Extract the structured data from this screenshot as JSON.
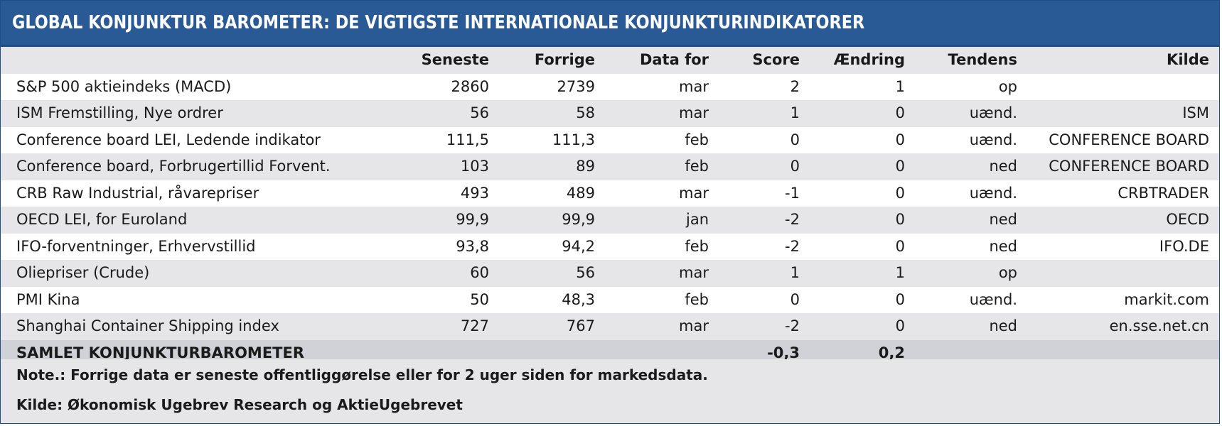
{
  "title": "GLOBAL KONJUNKTUR BAROMETER: DE VIGTIGSTE INTERNATIONALE KONJUNKTURINDIKATORER",
  "colors": {
    "title_bg": "#2a5a96",
    "border": "#1f4d86",
    "row_shade": "#e6e6e9",
    "total_bg": "#d0d2d7"
  },
  "table": {
    "headers": {
      "seneste": "Seneste",
      "forrige": "Forrige",
      "data_for": "Data for",
      "score": "Score",
      "aendring": "Ændring",
      "tendens": "Tendens",
      "kilde": "Kilde"
    },
    "rows": [
      {
        "name": "S&P 500 aktieindeks (MACD)",
        "seneste": "2860",
        "forrige": "2739",
        "data_for": "mar",
        "score": "2",
        "aendring": "1",
        "tendens": "op",
        "kilde": ""
      },
      {
        "name": "ISM Fremstilling, Nye ordrer",
        "seneste": "56",
        "forrige": "58",
        "data_for": "mar",
        "score": "1",
        "aendring": "0",
        "tendens": "uænd.",
        "kilde": "ISM"
      },
      {
        "name": "Conference board LEI, Ledende indikator",
        "seneste": "111,5",
        "forrige": "111,3",
        "data_for": "feb",
        "score": "0",
        "aendring": "0",
        "tendens": "uænd.",
        "kilde": "CONFERENCE BOARD"
      },
      {
        "name": "Conference board, Forbrugertillid Forvent.",
        "seneste": "103",
        "forrige": "89",
        "data_for": "feb",
        "score": "0",
        "aendring": "0",
        "tendens": "ned",
        "kilde": "CONFERENCE BOARD"
      },
      {
        "name": "CRB Raw Industrial, råvarepriser",
        "seneste": "493",
        "forrige": "489",
        "data_for": "mar",
        "score": "-1",
        "aendring": "0",
        "tendens": "uænd.",
        "kilde": "CRBTRADER"
      },
      {
        "name": "OECD LEI, for Euroland",
        "seneste": "99,9",
        "forrige": "99,9",
        "data_for": "jan",
        "score": "-2",
        "aendring": "0",
        "tendens": "ned",
        "kilde": "OECD"
      },
      {
        "name": "IFO-forventninger, Erhvervstillid",
        "seneste": "93,8",
        "forrige": "94,2",
        "data_for": "feb",
        "score": "-2",
        "aendring": "0",
        "tendens": "ned",
        "kilde": "IFO.DE"
      },
      {
        "name": "Oliepriser (Crude)",
        "seneste": "60",
        "forrige": "56",
        "data_for": "mar",
        "score": "1",
        "aendring": "1",
        "tendens": "op",
        "kilde": ""
      },
      {
        "name": "PMI Kina",
        "seneste": "50",
        "forrige": "48,3",
        "data_for": "feb",
        "score": "0",
        "aendring": "0",
        "tendens": "uænd.",
        "kilde": "markit.com"
      },
      {
        "name": "Shanghai  Container Shipping index",
        "seneste": "727",
        "forrige": "767",
        "data_for": "mar",
        "score": "-2",
        "aendring": "0",
        "tendens": "ned",
        "kilde": "en.sse.net.cn"
      }
    ],
    "total": {
      "name": "SAMLET KONJUNKTURBAROMETER",
      "score": "-0,3",
      "aendring": "0,2"
    }
  },
  "notes": {
    "note": "Note.: Forrige data er seneste offentliggørelse eller for 2 uger siden for markedsdata.",
    "kilde": "Kilde: Økonomisk Ugebrev Research og AktieUgebrevet"
  }
}
